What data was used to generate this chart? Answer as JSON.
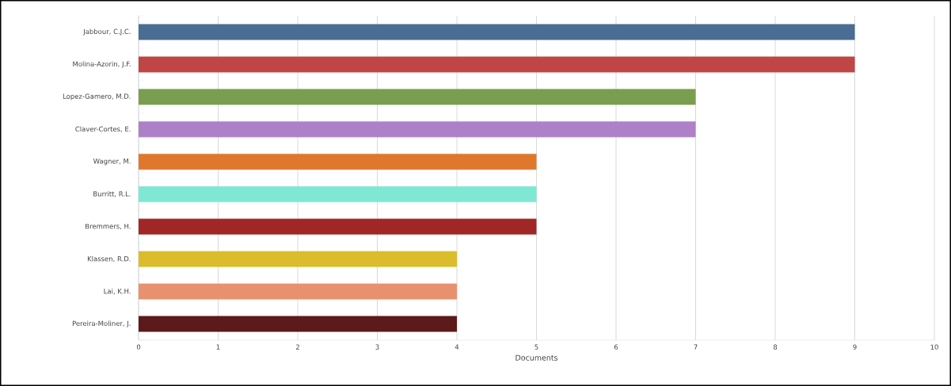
{
  "chart_data": {
    "type": "bar",
    "orientation": "horizontal",
    "xlabel": "Documents",
    "categories": [
      "Jabbour, C.J.C.",
      "Molina-Azorin, J.F.",
      "Lopez-Gamero, M.D.",
      "Claver-Cortes, E.",
      "Wagner, M.",
      "Burritt, R.L.",
      "Bremmers, H.",
      "Klassen, R.D.",
      "Lai, K.H.",
      "Pereira-Moliner, J."
    ],
    "values": [
      9,
      9,
      7,
      7,
      5,
      5,
      5,
      4,
      4,
      4
    ],
    "colors": [
      "#4a6d94",
      "#c04545",
      "#7a9e50",
      "#ae80c8",
      "#df782d",
      "#7ee8d2",
      "#a12727",
      "#dbbd2c",
      "#e8916f",
      "#5c1a1a"
    ],
    "xlim": [
      0,
      10
    ],
    "xticks": [
      0,
      1,
      2,
      3,
      4,
      5,
      6,
      7,
      8,
      9,
      10
    ],
    "grid": "x"
  }
}
